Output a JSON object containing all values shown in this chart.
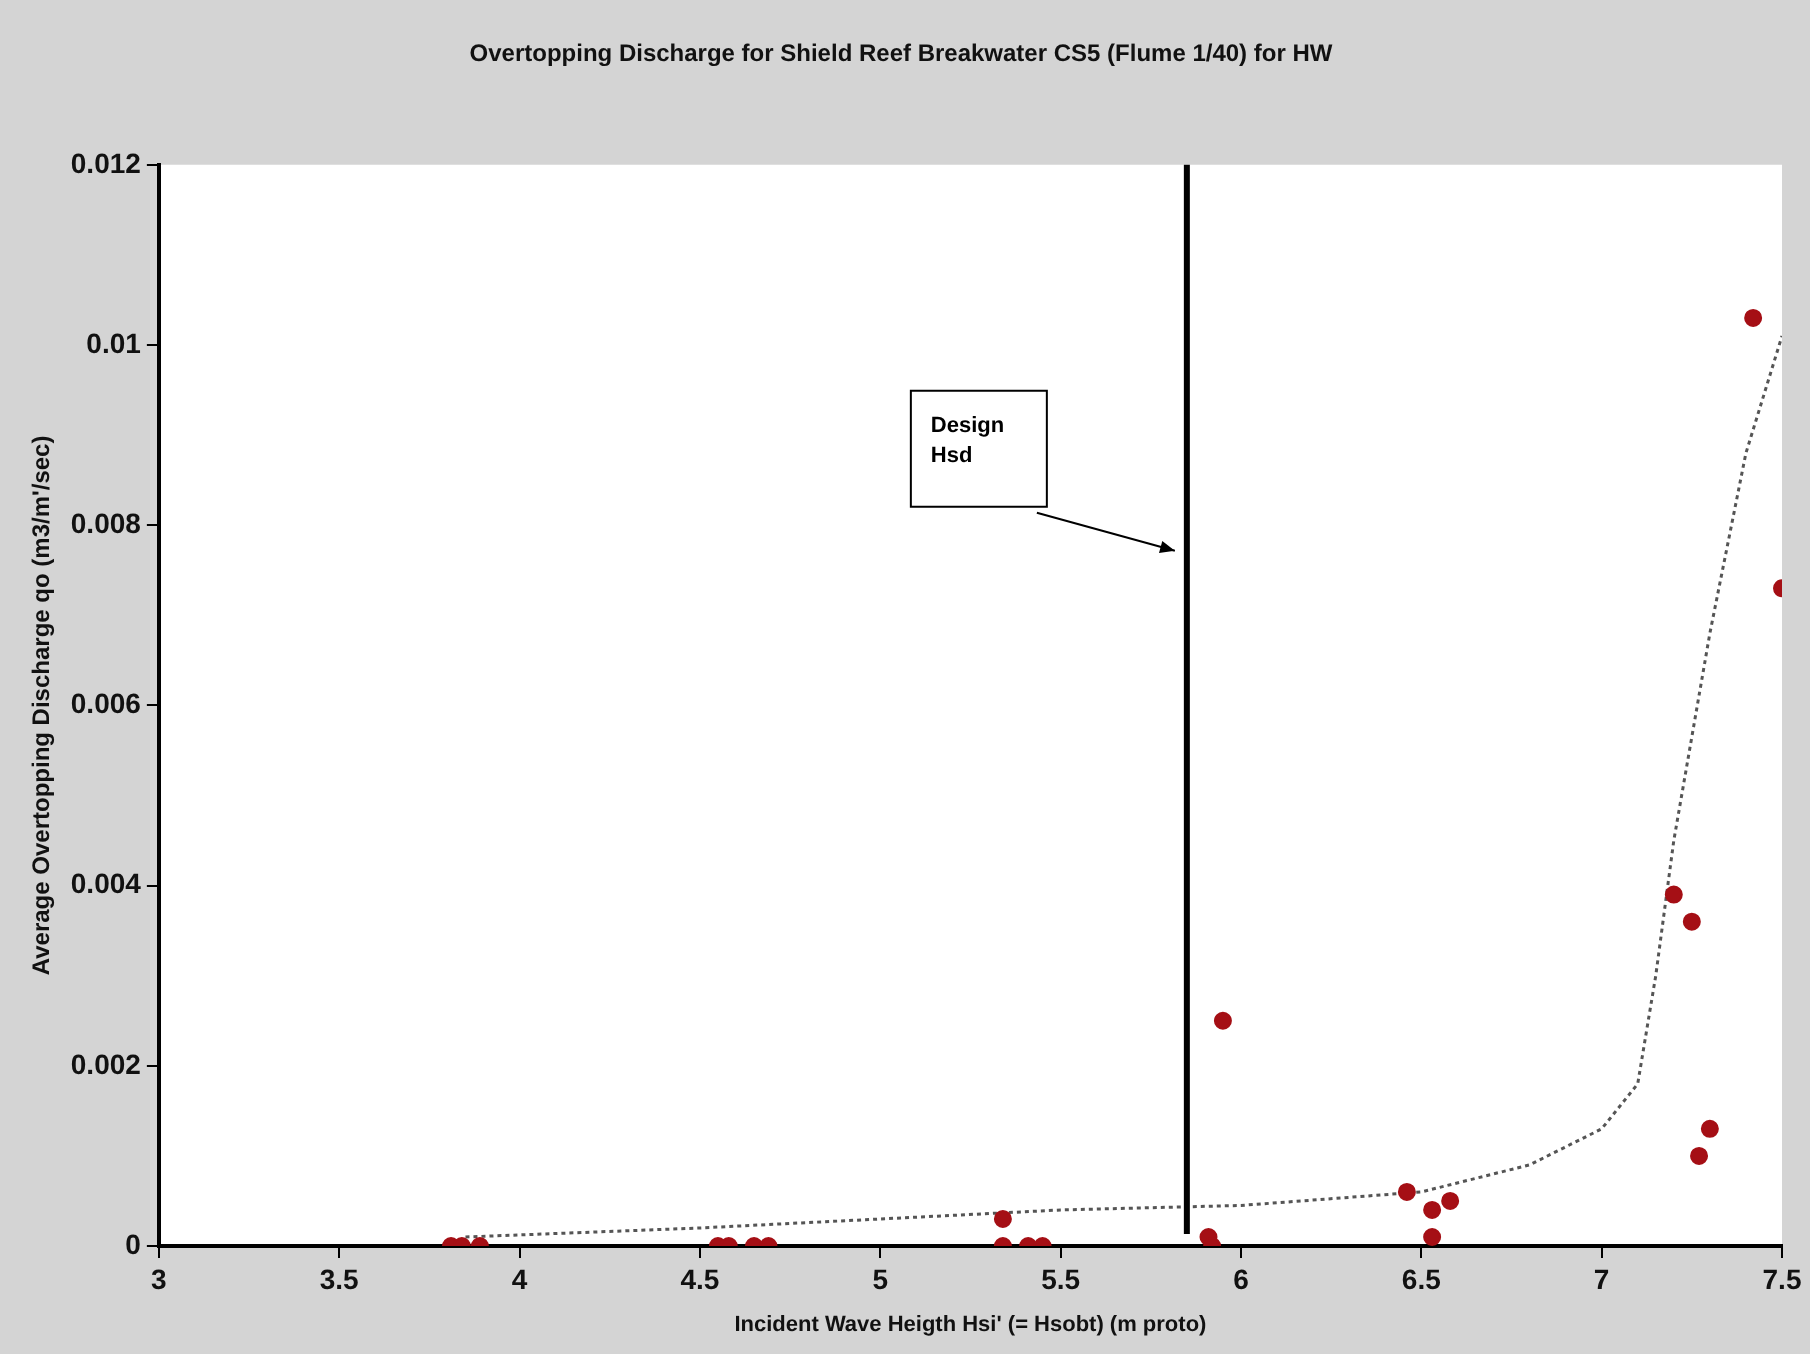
{
  "chart_data": {
    "type": "scatter",
    "title": "Overtopping Discharge for Shield Reef Breakwater CS5 (Flume 1/40) for HW",
    "xlabel": "Incident Wave Heigth Hsi' (= Hsobt) (m proto)",
    "ylabel": "Average Overtopping Discharge qo (m3/m'/sec)",
    "xlim": [
      3,
      7.5
    ],
    "xticks": [
      3,
      3.5,
      4,
      4.5,
      5,
      5.5,
      6,
      6.5,
      7,
      7.5
    ],
    "ylim": [
      0,
      0.012
    ],
    "yticks": [
      0,
      0.002,
      0.004,
      0.006,
      0.008,
      0.01,
      0.012
    ],
    "grid": false,
    "legend": false,
    "series": [
      {
        "marker": "circle",
        "color": "#a50f15",
        "x": [
          3.81,
          3.84,
          3.89,
          4.55,
          4.58,
          4.65,
          4.69,
          5.34,
          5.41,
          5.45,
          5.34,
          5.91,
          5.92,
          5.95,
          6.46,
          6.53,
          6.58,
          6.53,
          7.2,
          7.25,
          7.27,
          7.3,
          7.42,
          7.5
        ],
        "values": [
          0,
          0,
          0,
          0,
          0,
          0,
          0,
          0,
          0,
          0,
          0.0003,
          0.0001,
          0,
          0.0025,
          0.0006,
          0.0004,
          0.0005,
          0.0001,
          0.0039,
          0.0036,
          0.001,
          0.0013,
          0.0103,
          0.0073
        ]
      },
      {
        "type": "line",
        "marker": "none",
        "color": "#555555",
        "line_style": "dotted",
        "x": [
          3.85,
          4.5,
          5,
          5.5,
          6,
          6.5,
          6.8,
          7,
          7.1,
          7.15,
          7.2,
          7.3,
          7.4,
          7.5
        ],
        "values": [
          0.0001,
          0.0002,
          0.0003,
          0.0004,
          0.00045,
          0.0006,
          0.0009,
          0.0013,
          0.0018,
          0.003,
          0.0045,
          0.0068,
          0.0088,
          0.0101
        ]
      }
    ],
    "ref_lines": [
      {
        "axis": "x",
        "value": 5.85,
        "label": "Design Hsd",
        "color": "#000000"
      }
    ]
  }
}
